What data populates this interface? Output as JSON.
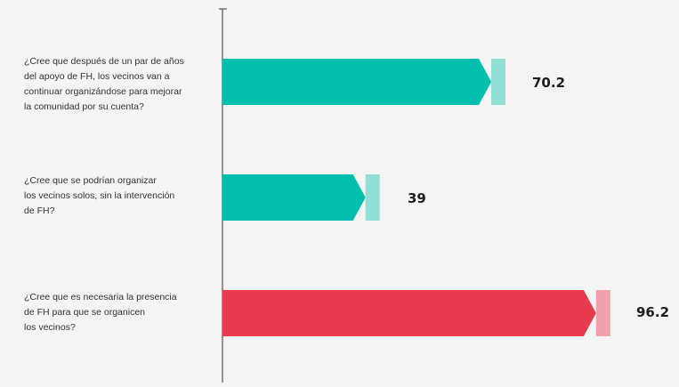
{
  "chart_data": {
    "type": "bar",
    "orientation": "horizontal",
    "categories": [
      "¿Cree que después de un par de años\ndel apoyo de FH, los vecinos van a\ncontinuar organizándose para mejorar\nla comunidad por su cuenta?",
      "¿Cree que se podrían organizar\nlos vecinos solos, sin la intervención\nde FH?",
      "¿Cree que es necesaria la presencia\nde FH para que se organicen\nlos vecinos?"
    ],
    "values": [
      70.2,
      39,
      96.2
    ],
    "value_labels": [
      "70.2",
      "39",
      "96.2"
    ],
    "colors": [
      "#00bfad",
      "#00bfad",
      "#e83c4e"
    ],
    "tip_colors": [
      "#8fdfd6",
      "#8fdfd6",
      "#f1a1ab"
    ],
    "xlim": [
      0,
      100
    ],
    "title": "",
    "xlabel": "",
    "ylabel": "",
    "grid": false,
    "legend": "none"
  }
}
